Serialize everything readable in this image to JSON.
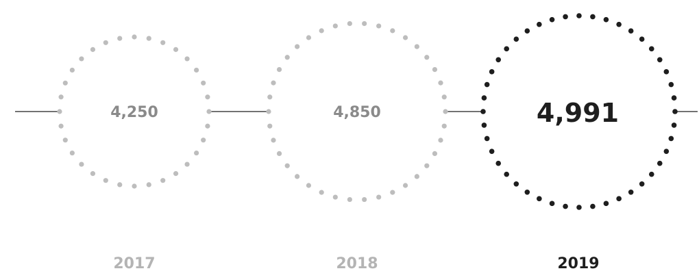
{
  "milestones": [
    {
      "year": "2017",
      "value": "4,250",
      "highlighted": false
    },
    {
      "year": "2018",
      "value": "4,850",
      "highlighted": false
    },
    {
      "year": "2019",
      "value": "4,991",
      "highlighted": true
    }
  ],
  "colors": {
    "muted_dots": "#bdbdbd",
    "muted_value": "#8a8a8a",
    "muted_year": "#b4b4b4",
    "highlight": "#1e1e1e",
    "line": "#1e1e1e"
  }
}
